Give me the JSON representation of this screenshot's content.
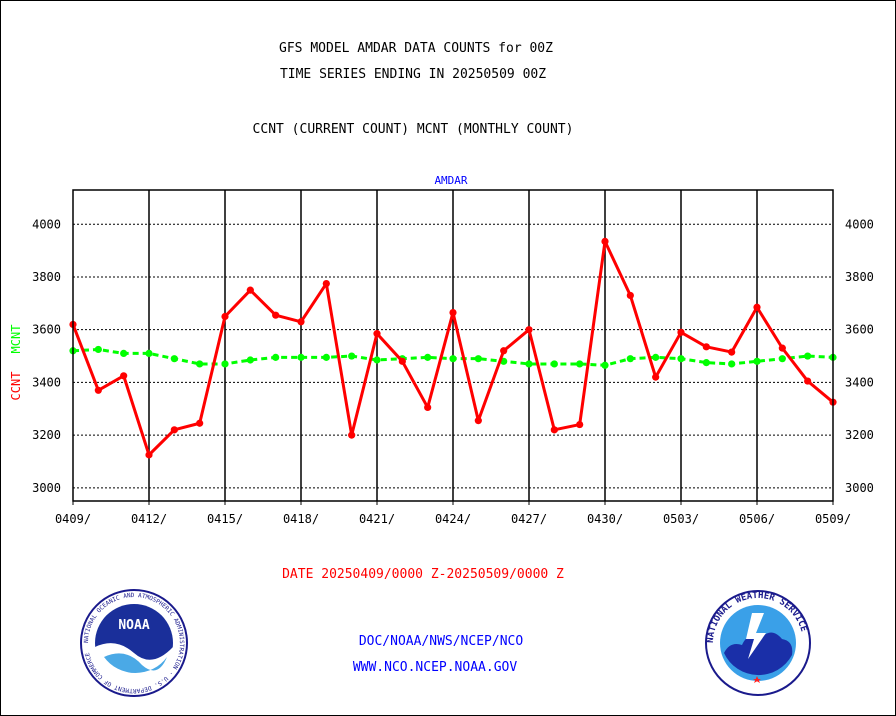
{
  "header": {
    "title_line1": "GFS MODEL AMDAR DATA COUNTS for 00Z",
    "title_line2": "TIME SERIES ENDING IN 20250509 00Z",
    "subtitle": "CCNT (CURRENT COUNT) MCNT (MONTHLY COUNT)",
    "panel_label": "AMDAR"
  },
  "axis": {
    "ylabel_ccnt": "CCNT",
    "ylabel_mcnt": "MCNT"
  },
  "footer": {
    "date_range": "DATE 20250409/0000 Z-20250509/0000 Z",
    "org_line": "DOC/NOAA/NWS/NCEP/NCO",
    "url_line": "WWW.NCO.NCEP.NOAA.GOV"
  },
  "logos": {
    "left": {
      "center_text": "NOAA",
      "ring_text": "NATIONAL OCEANIC AND ATMOSPHERIC ADMINISTRATION · U.S. DEPARTMENT OF COMMERCE"
    },
    "right": {
      "ring_text": "NATIONAL WEATHER SERVICE"
    }
  },
  "colors": {
    "ccnt": "#ff0000",
    "mcnt": "#00ff00",
    "panel_label": "#0000ff",
    "footer_date": "#ff0000",
    "footer_org": "#0000ff"
  },
  "chart_data": {
    "type": "line",
    "title": "GFS MODEL AMDAR DATA COUNTS for 00Z",
    "x_tick_labels": [
      "0409/",
      "0412/",
      "0415/",
      "0418/",
      "0421/",
      "0424/",
      "0427/",
      "0430/",
      "0503/",
      "0506/",
      "0509/"
    ],
    "x_days_count": 31,
    "ylim": [
      2950,
      4130
    ],
    "y_ticks": [
      3000,
      3200,
      3400,
      3600,
      3800,
      4000
    ],
    "grid": true,
    "series": [
      {
        "name": "CCNT",
        "color": "#ff0000",
        "values": [
          3620,
          3370,
          3425,
          3125,
          3220,
          3245,
          3650,
          3750,
          3655,
          3630,
          3775,
          3200,
          3585,
          3480,
          3305,
          3665,
          3255,
          3520,
          3600,
          3220,
          3240,
          3935,
          3730,
          3420,
          3590,
          3535,
          3515,
          3685,
          3530,
          3405,
          3325
        ]
      },
      {
        "name": "MCNT",
        "color": "#00ff00",
        "values": [
          3520,
          3525,
          3510,
          3510,
          3490,
          3470,
          3470,
          3485,
          3495,
          3495,
          3495,
          3500,
          3485,
          3490,
          3495,
          3490,
          3490,
          3480,
          3470,
          3470,
          3470,
          3465,
          3490,
          3495,
          3490,
          3475,
          3470,
          3480,
          3490,
          3500,
          3495
        ]
      }
    ]
  }
}
